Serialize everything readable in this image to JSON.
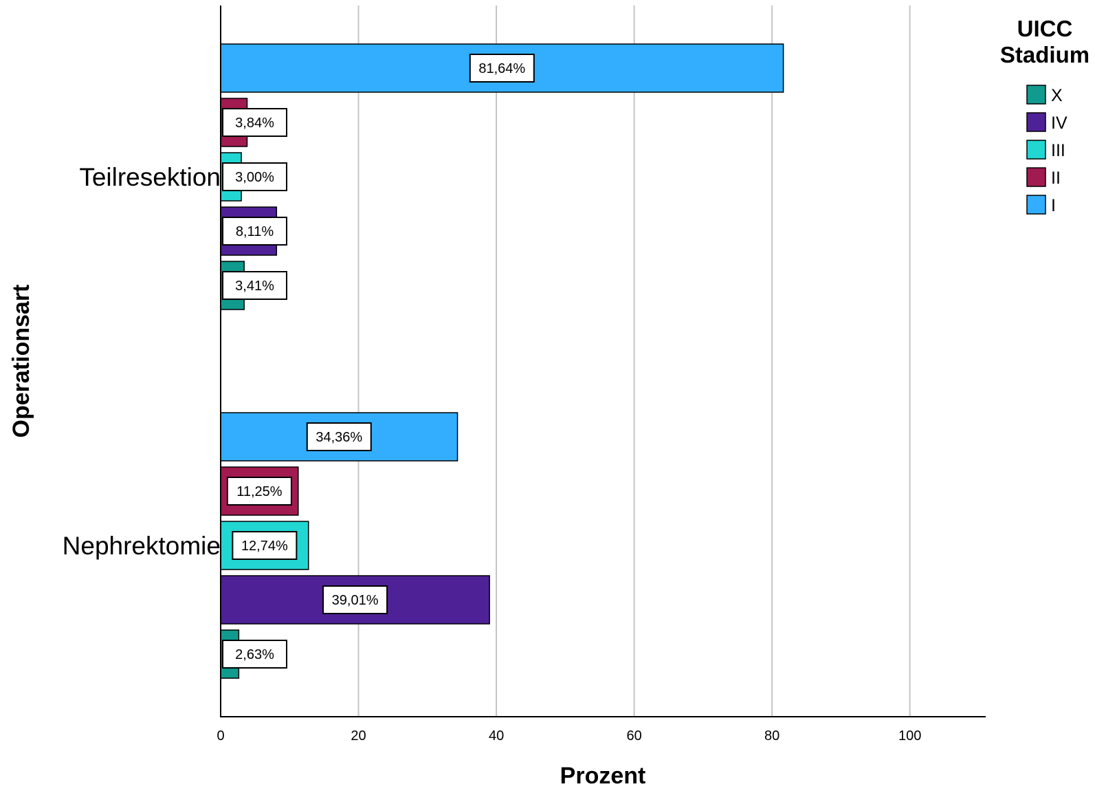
{
  "chart_data": {
    "type": "bar",
    "orientation": "horizontal",
    "categories": [
      "Teilresektion",
      "Nephrektomie"
    ],
    "series": [
      {
        "name": "I",
        "color": "#33aeff",
        "values": [
          81.64,
          34.36
        ],
        "labels": [
          "81,64%",
          "34,36%"
        ]
      },
      {
        "name": "II",
        "color": "#a11a50",
        "values": [
          3.84,
          11.25
        ],
        "labels": [
          "3,84%",
          "11,25%"
        ]
      },
      {
        "name": "III",
        "color": "#22d6d2",
        "values": [
          3.0,
          12.74
        ],
        "labels": [
          "3,00%",
          "12,74%"
        ]
      },
      {
        "name": "IV",
        "color": "#4f2196",
        "values": [
          8.11,
          39.01
        ],
        "labels": [
          "8,11%",
          "39,01%"
        ]
      },
      {
        "name": "X",
        "color": "#119a8e",
        "values": [
          3.41,
          2.63
        ],
        "labels": [
          "3,41%",
          "2,63%"
        ]
      }
    ],
    "xlabel": "Prozent",
    "ylabel": "Operationsart",
    "xlim": [
      0,
      111
    ],
    "xticks": [
      0,
      20,
      40,
      60,
      80,
      100
    ],
    "grid": true,
    "legend": {
      "title_lines": [
        "UICC",
        "Stadium"
      ],
      "order": [
        "X",
        "IV",
        "III",
        "II",
        "I"
      ],
      "placement": "top-right"
    }
  }
}
